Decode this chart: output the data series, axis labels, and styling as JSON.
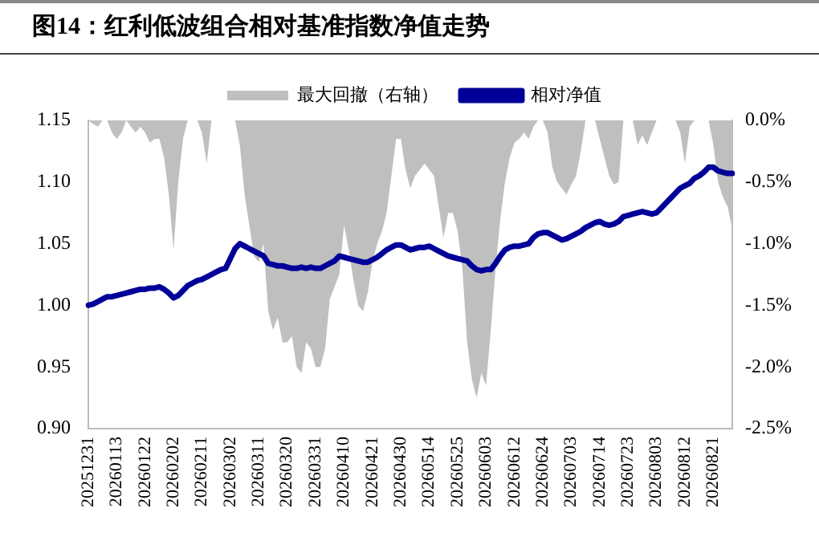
{
  "chart_data": {
    "type": "line",
    "title": "图14：红利低波组合相对基准指数净值走势",
    "categories": [
      "20251231",
      null,
      null,
      null,
      null,
      null,
      "20260113",
      null,
      null,
      null,
      null,
      null,
      "20260122",
      null,
      null,
      null,
      null,
      null,
      "20260202",
      null,
      null,
      null,
      null,
      null,
      "20260211",
      null,
      null,
      null,
      null,
      null,
      "20260302",
      null,
      null,
      null,
      null,
      null,
      "20260311",
      null,
      null,
      null,
      null,
      null,
      "20260320",
      null,
      null,
      null,
      null,
      null,
      "20260331",
      null,
      null,
      null,
      null,
      null,
      "20260410",
      null,
      null,
      null,
      null,
      null,
      "20260421",
      null,
      null,
      null,
      null,
      null,
      "20260430",
      null,
      null,
      null,
      null,
      null,
      "20260514",
      null,
      null,
      null,
      null,
      null,
      "20260525",
      null,
      null,
      null,
      null,
      null,
      "20260603",
      null,
      null,
      null,
      null,
      null,
      "20260612",
      null,
      null,
      null,
      null,
      null,
      "20260624",
      null,
      null,
      null,
      null,
      null,
      "20260703",
      null,
      null,
      null,
      null,
      null,
      "20260714",
      null,
      null,
      null,
      null,
      null,
      "20260723",
      null,
      null,
      null,
      null,
      null,
      "20260803",
      null,
      null,
      null,
      null,
      null,
      "20260812",
      null,
      null,
      null,
      null,
      null,
      "20260821",
      null,
      null,
      null,
      null
    ],
    "series": [
      {
        "name": "最大回撤（右轴）",
        "type": "area",
        "axis": "y2",
        "color": "#bfbfbf",
        "values": [
          0,
          -0.03,
          -0.05,
          0,
          0,
          -0.1,
          -0.15,
          -0.1,
          0,
          -0.05,
          -0.1,
          -0.05,
          -0.1,
          -0.18,
          -0.15,
          -0.15,
          -0.3,
          -0.6,
          -1.05,
          -0.5,
          -0.15,
          0,
          0,
          0,
          -0.1,
          -0.35,
          0,
          0,
          0,
          0,
          0,
          0,
          -0.2,
          -0.6,
          -0.85,
          -1.1,
          -1.15,
          -1.0,
          -1.55,
          -1.7,
          -1.6,
          -1.8,
          -1.8,
          -1.75,
          -2.0,
          -2.05,
          -1.8,
          -1.85,
          -2.0,
          -2.0,
          -1.85,
          -1.45,
          -1.35,
          -1.25,
          -0.85,
          -1.05,
          -1.3,
          -1.5,
          -1.55,
          -1.4,
          -1.15,
          -1.0,
          -0.9,
          -0.75,
          -0.45,
          -0.15,
          -0.15,
          -0.4,
          -0.55,
          -0.45,
          -0.4,
          -0.35,
          -0.4,
          -0.45,
          -0.7,
          -0.95,
          -0.75,
          -0.75,
          -0.9,
          -1.2,
          -1.8,
          -2.1,
          -2.25,
          -2.05,
          -2.15,
          -1.7,
          -1.2,
          -0.8,
          -0.5,
          -0.3,
          -0.18,
          -0.15,
          -0.1,
          -0.15,
          -0.05,
          0,
          0,
          -0.1,
          -0.38,
          -0.5,
          -0.55,
          -0.6,
          -0.52,
          -0.45,
          -0.25,
          0,
          0,
          0,
          -0.15,
          -0.3,
          -0.45,
          -0.52,
          -0.5,
          0,
          0,
          0,
          -0.2,
          -0.12,
          -0.2,
          -0.1,
          0,
          0,
          0,
          0,
          0,
          -0.1,
          -0.35,
          -0.05,
          0,
          0,
          0,
          0,
          -0.2,
          -0.5,
          -0.62,
          -0.7,
          -0.88
        ]
      },
      {
        "name": "相对净值",
        "type": "line",
        "color": "#000099",
        "values": [
          1.0,
          1.001,
          1.003,
          1.005,
          1.007,
          1.007,
          1.008,
          1.009,
          1.01,
          1.011,
          1.012,
          1.013,
          1.013,
          1.014,
          1.014,
          1.015,
          1.013,
          1.01,
          1.006,
          1.008,
          1.012,
          1.016,
          1.018,
          1.02,
          1.021,
          1.023,
          1.025,
          1.027,
          1.029,
          1.03,
          1.038,
          1.046,
          1.05,
          1.048,
          1.046,
          1.044,
          1.042,
          1.04,
          1.034,
          1.033,
          1.032,
          1.032,
          1.031,
          1.03,
          1.03,
          1.031,
          1.03,
          1.031,
          1.03,
          1.03,
          1.032,
          1.034,
          1.036,
          1.04,
          1.039,
          1.038,
          1.037,
          1.036,
          1.035,
          1.035,
          1.037,
          1.039,
          1.042,
          1.045,
          1.047,
          1.049,
          1.049,
          1.047,
          1.045,
          1.046,
          1.047,
          1.047,
          1.048,
          1.046,
          1.044,
          1.042,
          1.04,
          1.039,
          1.038,
          1.037,
          1.036,
          1.032,
          1.029,
          1.028,
          1.029,
          1.029,
          1.034,
          1.04,
          1.045,
          1.047,
          1.048,
          1.048,
          1.049,
          1.05,
          1.055,
          1.058,
          1.059,
          1.059,
          1.057,
          1.055,
          1.053,
          1.054,
          1.056,
          1.058,
          1.06,
          1.063,
          1.065,
          1.067,
          1.068,
          1.066,
          1.065,
          1.066,
          1.068,
          1.072,
          1.073,
          1.074,
          1.075,
          1.076,
          1.075,
          1.074,
          1.075,
          1.079,
          1.083,
          1.087,
          1.091,
          1.095,
          1.097,
          1.099,
          1.103,
          1.105,
          1.108,
          1.112,
          1.112,
          1.109,
          1.108,
          1.107,
          1.107
        ]
      }
    ],
    "ylim": [
      0.9,
      1.15
    ],
    "yticks": [
      {
        "value": 0.9,
        "label": "0.90"
      },
      0.95,
      {
        "value": 1.0,
        "label": "1.00"
      },
      1.05,
      {
        "value": 1.1,
        "label": "1.10"
      },
      1.15
    ],
    "y2lim": [
      -2.5,
      0
    ],
    "y2ticks": [
      {
        "value": -2.5,
        "label": "-2.5%"
      },
      {
        "value": -2.0,
        "label": "-2.0%"
      },
      {
        "value": -1.5,
        "label": "-1.5%"
      },
      {
        "value": -1.0,
        "label": "-1.0%"
      },
      {
        "value": -0.5,
        "label": "-0.5%"
      },
      {
        "value": 0,
        "label": "0.0%"
      }
    ],
    "legend": "top",
    "grid": false,
    "marker": "none"
  }
}
